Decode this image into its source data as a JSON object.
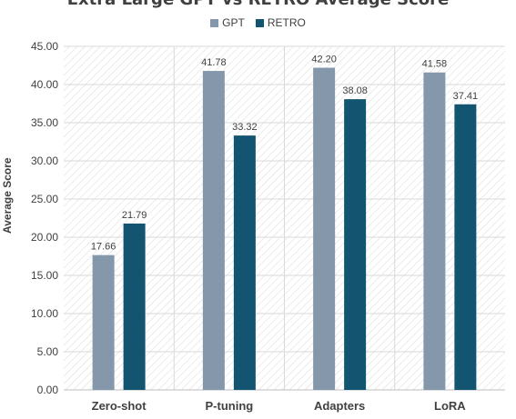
{
  "chart_data": {
    "type": "bar",
    "title": "Extra Large GPT vs RETRO Average Score",
    "xlabel": "",
    "ylabel": "Average Score",
    "categories": [
      "Zero-shot",
      "P-tuning",
      "Adapters",
      "LoRA"
    ],
    "series": [
      {
        "name": "GPT",
        "color": "#8497ab",
        "values": [
          17.66,
          41.78,
          42.2,
          41.58
        ],
        "labels": [
          "17.66",
          "41.78",
          "42.20",
          "41.58"
        ]
      },
      {
        "name": "RETRO",
        "color": "#135470",
        "values": [
          21.79,
          33.32,
          38.08,
          37.41
        ],
        "labels": [
          "21.79",
          "33.32",
          "38.08",
          "37.41"
        ]
      }
    ],
    "ylim": [
      0,
      45
    ],
    "yticks": [
      "0.00",
      "5.00",
      "10.00",
      "15.00",
      "20.00",
      "25.00",
      "30.00",
      "35.00",
      "40.00",
      "45.00"
    ],
    "grid": true,
    "legend": "top"
  }
}
